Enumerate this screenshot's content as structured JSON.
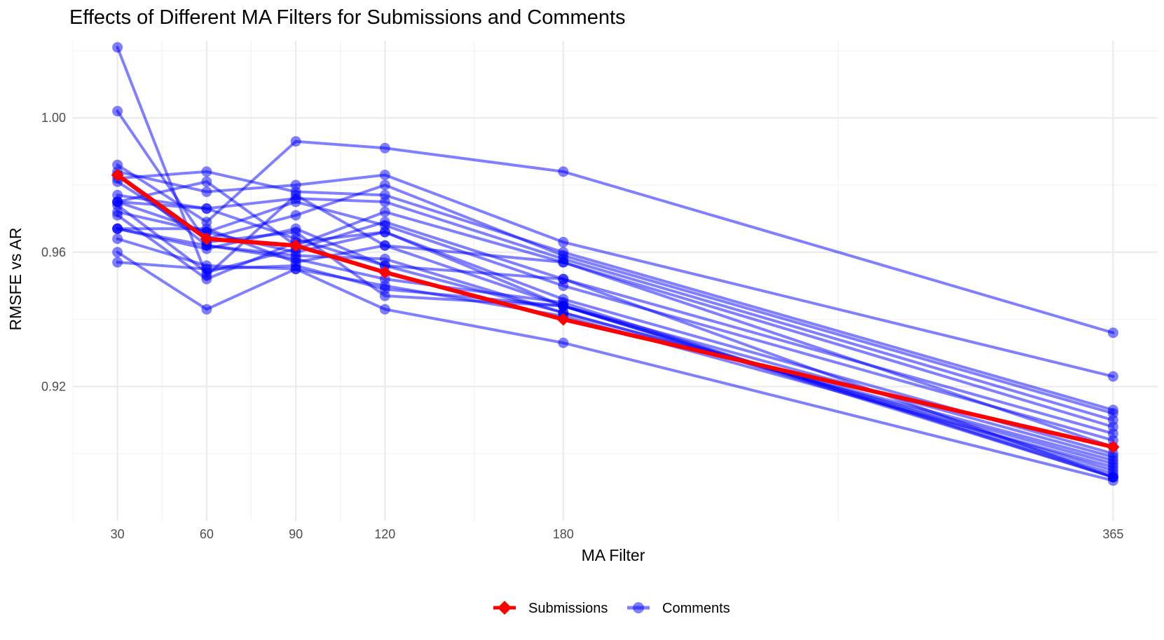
{
  "chart_data": {
    "type": "line",
    "title": "Effects of Different MA Filters for Submissions and Comments",
    "xlabel": "MA Filter",
    "ylabel": "RMSFE vs AR",
    "x": [
      30,
      60,
      90,
      120,
      180,
      365
    ],
    "x_ticks": [
      "30",
      "60",
      "90",
      "120",
      "180",
      "365"
    ],
    "y_ticks": [
      "0.92",
      "0.96",
      "1.00"
    ],
    "xlim": [
      15,
      380
    ],
    "ylim": [
      0.88,
      1.023
    ],
    "grid": true,
    "legend_position": "bottom",
    "submissions": {
      "name": "Submissions",
      "color": "#ff0000",
      "marker": "diamond",
      "values": [
        0.983,
        0.964,
        0.962,
        0.954,
        0.94,
        0.902
      ]
    },
    "comments": {
      "name": "Comments",
      "color": "#0000ff",
      "opacity": 0.5,
      "marker": "circle",
      "lines": [
        [
          1.021,
          0.953,
          0.977,
          0.962,
          0.957,
          0.902
        ],
        [
          1.002,
          0.963,
          0.966,
          0.947,
          0.944,
          0.895
        ],
        [
          0.986,
          0.969,
          0.993,
          0.991,
          0.984,
          0.936
        ],
        [
          0.984,
          0.978,
          0.98,
          0.983,
          0.963,
          0.923
        ],
        [
          0.982,
          0.984,
          0.978,
          0.977,
          0.96,
          0.913
        ],
        [
          0.981,
          0.964,
          0.971,
          0.98,
          0.959,
          0.912
        ],
        [
          0.977,
          0.973,
          0.976,
          0.975,
          0.958,
          0.91
        ],
        [
          0.975,
          0.981,
          0.962,
          0.972,
          0.957,
          0.908
        ],
        [
          0.974,
          0.954,
          0.961,
          0.969,
          0.952,
          0.906
        ],
        [
          0.972,
          0.966,
          0.975,
          0.968,
          0.95,
          0.904
        ],
        [
          0.971,
          0.952,
          0.963,
          0.966,
          0.946,
          0.9
        ],
        [
          0.967,
          0.967,
          0.957,
          0.962,
          0.944,
          0.899
        ],
        [
          0.967,
          0.962,
          0.959,
          0.958,
          0.942,
          0.898
        ],
        [
          0.964,
          0.956,
          0.955,
          0.95,
          0.941,
          0.896
        ],
        [
          0.96,
          0.943,
          0.955,
          0.943,
          0.933,
          0.892
        ],
        [
          0.957,
          0.955,
          0.956,
          0.949,
          0.944,
          0.894
        ],
        [
          0.975,
          0.973,
          0.964,
          0.956,
          0.952,
          0.893
        ],
        [
          0.983,
          0.962,
          0.958,
          0.952,
          0.945,
          0.893
        ],
        [
          0.967,
          0.961,
          0.967,
          0.956,
          0.942,
          0.897
        ],
        [
          0.975,
          0.966,
          0.96,
          0.966,
          0.944,
          0.893
        ]
      ]
    }
  }
}
